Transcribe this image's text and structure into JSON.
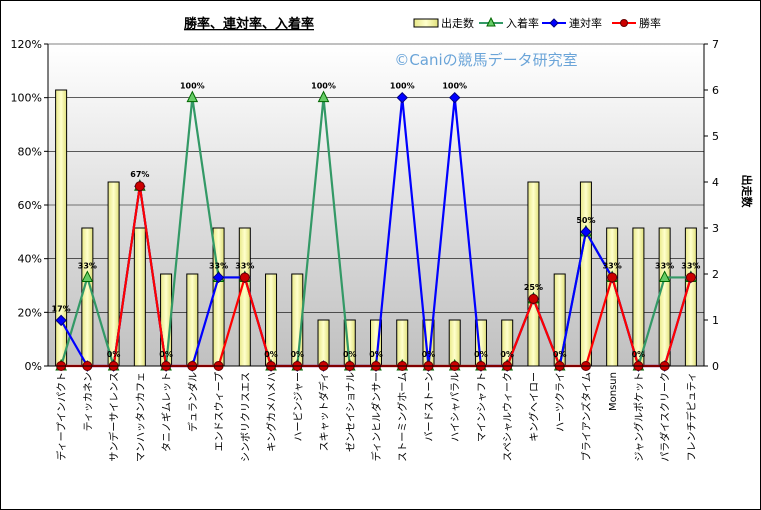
{
  "chart_data": {
    "type": "bar",
    "title": "勝率、連対率、入着率",
    "watermark": "©Caniの競馬データ研究室",
    "y2label": "出走数",
    "ylim": [
      0,
      120
    ],
    "y2lim": [
      0,
      7
    ],
    "yticks": [
      "0%",
      "20%",
      "40%",
      "60%",
      "80%",
      "100%",
      "120%"
    ],
    "y2ticks": [
      "0",
      "1",
      "2",
      "3",
      "4",
      "5",
      "6",
      "7"
    ],
    "legend_position": "top-right",
    "categories": [
      "ディープインパクト",
      "ティッカネン",
      "サンデーサイレンス",
      "マンハッタンカフェ",
      "タニノギムレット",
      "デュランダル",
      "エンドスウィープ",
      "シンボリクリスエス",
      "キングカメハメハ",
      "ハービンジャー",
      "スキャットダディ",
      "ゼンセイショナル",
      "ディンヒルダンサー",
      "ストーミングホーム",
      "バードストーン",
      "ハイシャパラル",
      "マインシャフト",
      "スペシャルウィーク",
      "キングヘイロー",
      "ハーツクライ",
      "ブライアンズタイム",
      "Monsun",
      "ジャングルポケット",
      "パラダイスクリーク",
      "フレンチデピュティ"
    ],
    "series": [
      {
        "name": "出走数",
        "type": "bar",
        "axis": "right",
        "color": "#ffff99",
        "values": [
          6,
          3,
          4,
          3,
          2,
          2,
          3,
          3,
          2,
          2,
          1,
          1,
          1,
          1,
          1,
          1,
          1,
          1,
          4,
          2,
          4,
          3,
          3,
          3,
          3
        ]
      },
      {
        "name": "入着率",
        "type": "line",
        "axis": "left",
        "color": "#339966",
        "values": [
          0,
          33,
          0,
          67,
          0,
          100,
          33,
          33,
          0,
          0,
          100,
          0,
          0,
          0,
          0,
          0,
          0,
          0,
          25,
          0,
          50,
          33,
          0,
          33,
          33
        ]
      },
      {
        "name": "連対率",
        "type": "line",
        "axis": "left",
        "color": "#0000ff",
        "values": [
          17,
          0,
          0,
          67,
          0,
          0,
          33,
          33,
          0,
          0,
          0,
          0,
          0,
          100,
          0,
          100,
          0,
          0,
          25,
          0,
          50,
          33,
          0,
          0,
          33
        ]
      },
      {
        "name": "勝率",
        "type": "line",
        "axis": "left",
        "color": "#ff0000",
        "values": [
          0,
          0,
          0,
          67,
          0,
          0,
          0,
          33,
          0,
          0,
          0,
          0,
          0,
          0,
          0,
          0,
          0,
          0,
          25,
          0,
          0,
          33,
          0,
          0,
          33
        ]
      }
    ],
    "data_labels": [
      "17%",
      "33%",
      "0%",
      "67%",
      "0%",
      "100%",
      "33%",
      "33%",
      "0%",
      "0%",
      "100%",
      "0%",
      "0%",
      "100%",
      "0%",
      "100%",
      "0%",
      "0%",
      "25%",
      "0%",
      "50%",
      "33%",
      "0%",
      "33%",
      "33%"
    ]
  }
}
